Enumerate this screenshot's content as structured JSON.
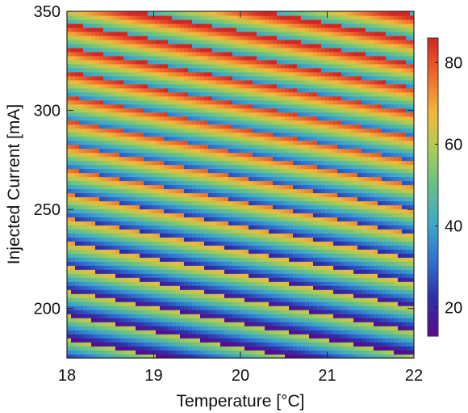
{
  "chart_data": {
    "type": "heatmap",
    "xlabel": "Temperature [°C]",
    "ylabel": "Injected Current [mA]",
    "xlim": [
      18,
      22
    ],
    "ylim": [
      175,
      350
    ],
    "x_ticks": [
      "18",
      "19",
      "20",
      "21",
      "22"
    ],
    "y_ticks": [
      "200",
      "250",
      "300",
      "350"
    ],
    "x_tick_values": [
      18,
      19,
      20,
      21,
      22
    ],
    "y_tick_values": [
      200,
      250,
      300,
      350
    ],
    "colorbar": {
      "min": 13,
      "max": 86,
      "ticks": [
        "20",
        "40",
        "60",
        "80"
      ],
      "tick_values": [
        20,
        40,
        60,
        80
      ],
      "colormap": [
        "#5a0a8c",
        "#2e2fa8",
        "#2f6fd0",
        "#3ea8c8",
        "#64c08a",
        "#a9cd55",
        "#f1b93b",
        "#ee6a2a",
        "#d42424"
      ]
    },
    "pattern": {
      "description_values": "periodic diagonal bands; value resets from ~86 to ~13 along each band",
      "band_spacing_mA": 12.3,
      "band_slope_mA_per_C": -8.2,
      "value_min": 13,
      "value_max": 86
    }
  }
}
